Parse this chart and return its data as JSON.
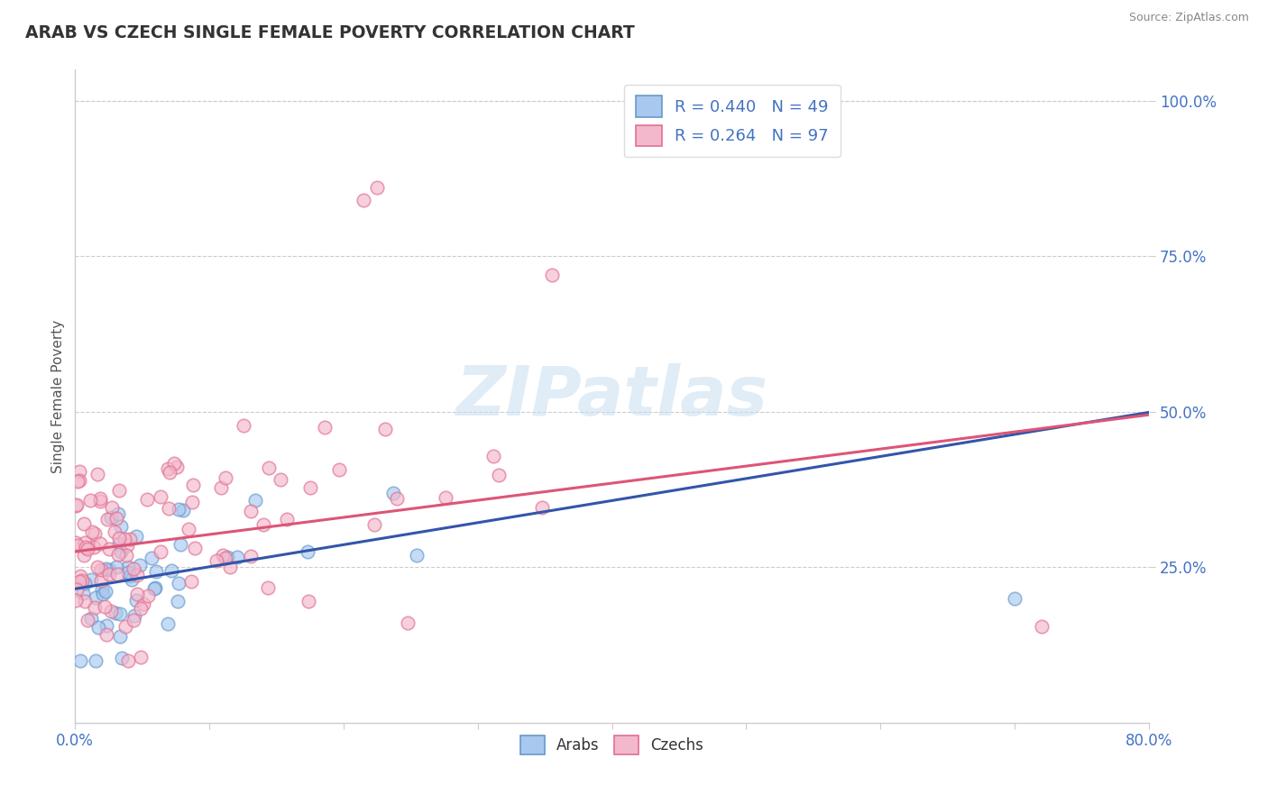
{
  "title": "ARAB VS CZECH SINGLE FEMALE POVERTY CORRELATION CHART",
  "source": "Source: ZipAtlas.com",
  "ylabel": "Single Female Poverty",
  "xlim": [
    0.0,
    0.8
  ],
  "ylim": [
    0.0,
    1.05
  ],
  "xtick_positions": [
    0.0,
    0.1,
    0.2,
    0.3,
    0.4,
    0.5,
    0.6,
    0.7,
    0.8
  ],
  "xtick_labels": [
    "0.0%",
    "",
    "",
    "",
    "",
    "",
    "",
    "",
    "80.0%"
  ],
  "ytick_positions": [
    0.25,
    0.5,
    0.75,
    1.0
  ],
  "ytick_labels": [
    "25.0%",
    "50.0%",
    "75.0%",
    "100.0%"
  ],
  "arab_face_color": "#A8C8F0",
  "arab_edge_color": "#6699CC",
  "czech_face_color": "#F4B8CC",
  "czech_edge_color": "#E07090",
  "arab_line_color": "#3355AA",
  "czech_line_color": "#DD5577",
  "arab_R": 0.44,
  "arab_N": 49,
  "czech_R": 0.264,
  "czech_N": 97,
  "watermark": "ZIPatlas",
  "title_color": "#333333",
  "grid_color": "#CCCCCC",
  "arab_intercept": 0.215,
  "arab_slope": 0.355,
  "czech_intercept": 0.275,
  "czech_slope": 0.275
}
